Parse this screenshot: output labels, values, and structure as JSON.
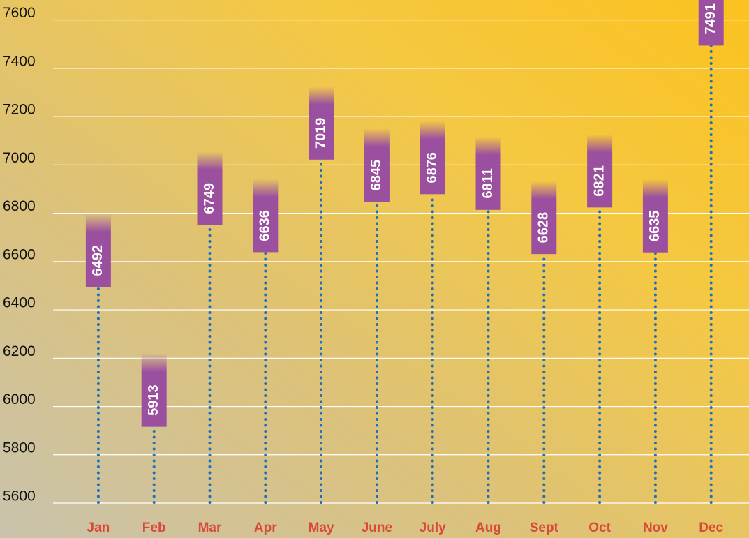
{
  "chart_data": {
    "type": "bar",
    "categories": [
      "Jan",
      "Feb",
      "Mar",
      "Apr",
      "May",
      "June",
      "July",
      "Aug",
      "Sept",
      "Oct",
      "Nov",
      "Dec"
    ],
    "values": [
      6492,
      5913,
      6749,
      6636,
      7019,
      6845,
      6876,
      6811,
      6628,
      6821,
      6635,
      7491
    ],
    "color": "#9b4f9f",
    "stem_color": "#1f6fb8",
    "label_color": "#d9493a",
    "ylim": [
      5600,
      7680
    ],
    "yticks": [
      5600,
      5800,
      6000,
      6200,
      6400,
      6600,
      6800,
      7000,
      7200,
      7400,
      7600
    ],
    "grid": true
  }
}
